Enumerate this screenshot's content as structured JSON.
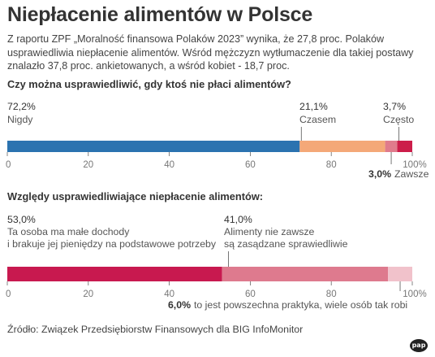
{
  "title": "Niepłacenie alimentów w Polsce",
  "lead": "Z raportu ZPF „Moralność finansowa Polaków 2023” wynika, że 27,8 proc. Polaków usprawiedliwia niepłacenie alimentów. Wśród mężczyzn wytłumaczenie dla takiej postawy znalazło 37,8 proc. ankietowanych, a wśród kobiet - 18,7 proc.",
  "source": "Źródło: Związek Przedsiębiorstw Finansowych dla BIG InfoMonitor",
  "logo_text": "pap",
  "chart_data": [
    {
      "type": "bar",
      "orientation": "horizontal-stacked",
      "title": "Czy można usprawiedliwić, gdy ktoś nie płaci alimentów?",
      "xlim": [
        0,
        100
      ],
      "ticks": [
        "0",
        "20",
        "40",
        "60",
        "80",
        "100%"
      ],
      "series": [
        {
          "name": "Nigdy",
          "value": 72.2,
          "value_label": "72,2%",
          "color": "#2b73b0"
        },
        {
          "name": "Czasem",
          "value": 21.1,
          "value_label": "21,1%",
          "color": "#f4a878"
        },
        {
          "name": "Zawsze",
          "value": 3.0,
          "value_label": "3,0%",
          "color": "#e07b8c"
        },
        {
          "name": "Często",
          "value": 3.7,
          "value_label": "3,7%",
          "color": "#cc1d4a"
        }
      ]
    },
    {
      "type": "bar",
      "orientation": "horizontal-stacked",
      "title": "Względy usprawiedliwiające niepłacenie alimentów:",
      "xlim": [
        0,
        100
      ],
      "ticks": [
        "0",
        "20",
        "40",
        "60",
        "80",
        "100%"
      ],
      "series": [
        {
          "name": "Ta osoba ma małe dochody i brakuje jej pieniędzy na podstawowe potrzeby",
          "value": 53.0,
          "value_label": "53,0%",
          "color": "#c8194f"
        },
        {
          "name": "Alimenty nie zawsze są zasądzane sprawiedliwie",
          "value": 41.0,
          "value_label": "41,0%",
          "color": "#de7a8e"
        },
        {
          "name": "to jest powszechna praktyka, wiele osób tak robi",
          "value": 6.0,
          "value_label": "6,0%",
          "color": "#f1c2cb"
        }
      ]
    }
  ]
}
